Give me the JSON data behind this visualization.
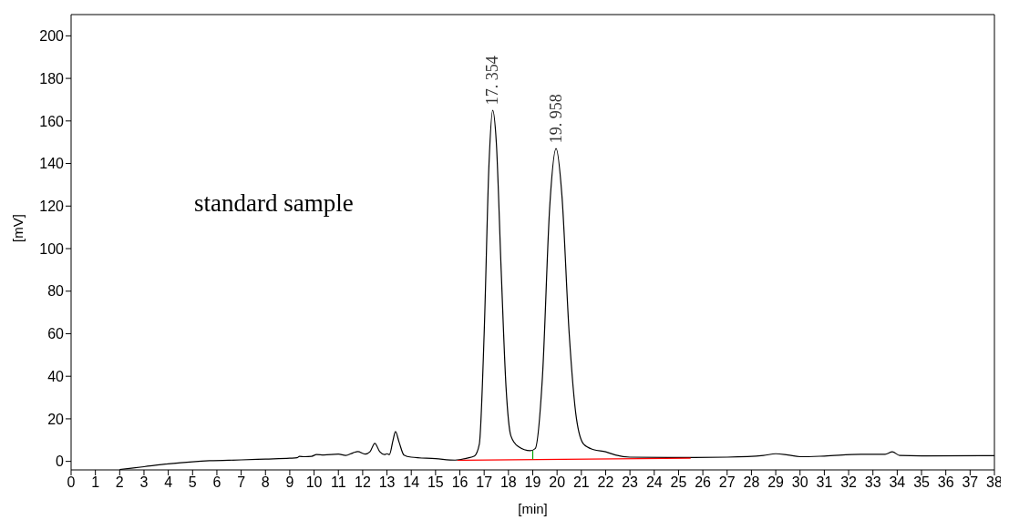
{
  "chart_data": {
    "type": "line",
    "xlabel": "[min]",
    "ylabel": "[mV]",
    "xlim": [
      0,
      38
    ],
    "xticks": [
      0,
      1,
      2,
      3,
      4,
      5,
      6,
      7,
      8,
      9,
      10,
      11,
      12,
      13,
      14,
      15,
      16,
      17,
      18,
      19,
      20,
      21,
      22,
      23,
      24,
      25,
      26,
      27,
      28,
      29,
      30,
      31,
      32,
      33,
      34,
      35,
      36,
      37,
      38
    ],
    "ylim": [
      -4,
      210
    ],
    "yticks": [
      0,
      20,
      40,
      60,
      80,
      100,
      120,
      140,
      160,
      180,
      200
    ],
    "marker": "none",
    "line_style": "solid",
    "annotations": [
      "standard sample",
      {
        "text": "17. 354",
        "x": 17.35,
        "y": 165
      },
      {
        "text": "19. 958",
        "x": 19.96,
        "y": 147
      }
    ],
    "series": [
      {
        "color": "#000000",
        "x": [
          2,
          3,
          4,
          5,
          5.7,
          7,
          8,
          9,
          9.3,
          9.4,
          9.6,
          9.9,
          10.1,
          10.4,
          11,
          11.3,
          11.6,
          11.8,
          12.1,
          12.3,
          12.5,
          12.7,
          12.9,
          13,
          13.1,
          13.25,
          13.35,
          13.5,
          13.7,
          14,
          15,
          15.8,
          16.3,
          16.6,
          16.8,
          17,
          17.2,
          17.35,
          17.5,
          17.7,
          17.9,
          18.1,
          18.4,
          18.9,
          19.1,
          19.4,
          19.7,
          19.96,
          20.2,
          20.5,
          20.8,
          21.1,
          21.5,
          22,
          22.4,
          23,
          25,
          27,
          28.5,
          29,
          29.5,
          30,
          31,
          32.5,
          33.5,
          33.8,
          34.1,
          35,
          38
        ],
        "values": [
          -3.8,
          -2.5,
          -1.2,
          -0.2,
          0.3,
          0.7,
          1.1,
          1.5,
          1.7,
          2.4,
          2.2,
          2.4,
          3.2,
          3,
          3.4,
          2.8,
          4,
          4.6,
          3.4,
          4.5,
          8.5,
          4.6,
          3.2,
          3.6,
          3.2,
          10,
          14,
          9,
          3,
          2,
          1.3,
          0.6,
          1.5,
          2.5,
          8,
          60,
          140,
          165,
          150,
          90,
          35,
          12,
          7,
          5,
          6,
          40,
          120,
          147,
          125,
          60,
          20,
          8,
          5.5,
          4.5,
          3,
          2,
          1.8,
          2,
          2.8,
          3.6,
          3,
          2.2,
          2.5,
          3.3,
          3.3,
          4.5,
          2.8,
          2.6,
          2.7
        ]
      },
      {
        "color": "#ff0000",
        "x": [
          15.9,
          25.5
        ],
        "values": [
          0.5,
          1.5
        ]
      },
      {
        "color": "#00a000",
        "x": [
          19,
          19
        ],
        "values": [
          1,
          5
        ]
      }
    ]
  }
}
